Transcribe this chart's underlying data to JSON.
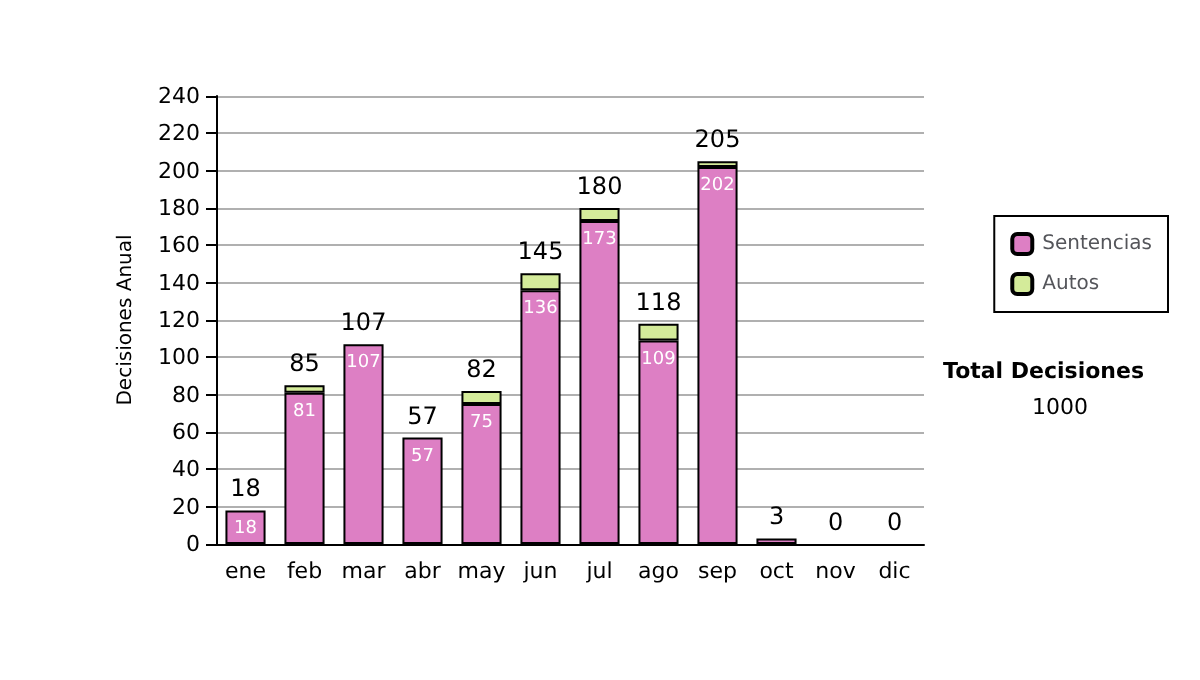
{
  "chart_data": {
    "type": "bar",
    "stacked": true,
    "categories": [
      "ene",
      "feb",
      "mar",
      "abr",
      "may",
      "jun",
      "jul",
      "ago",
      "sep",
      "oct",
      "nov",
      "dic"
    ],
    "ylabel": "Decisiones Anual",
    "series": [
      {
        "name": "Sentencias",
        "color": "#dd7fc4",
        "values": [
          18,
          81,
          107,
          57,
          75,
          136,
          173,
          109,
          202,
          3,
          0,
          0
        ],
        "value_labels": [
          "18",
          "81",
          "107",
          "57",
          "75",
          "136",
          "173",
          "109",
          "202",
          null,
          null,
          null
        ]
      },
      {
        "name": "Autos",
        "color": "#d4eb9a",
        "values": [
          0,
          4,
          0,
          0,
          7,
          9,
          7,
          9,
          3,
          0,
          0,
          0
        ]
      }
    ],
    "totals": [
      "18",
      "85",
      "107",
      "57",
      "82",
      "145",
      "180",
      "118",
      "205",
      "3",
      "0",
      "0"
    ],
    "ylim": [
      0,
      240
    ],
    "yticks": [
      0,
      20,
      40,
      60,
      80,
      100,
      120,
      140,
      160,
      180,
      200,
      220,
      240
    ],
    "grid": "y",
    "legend": "right",
    "annotations": [
      "Total Decisiones",
      "1000"
    ]
  }
}
